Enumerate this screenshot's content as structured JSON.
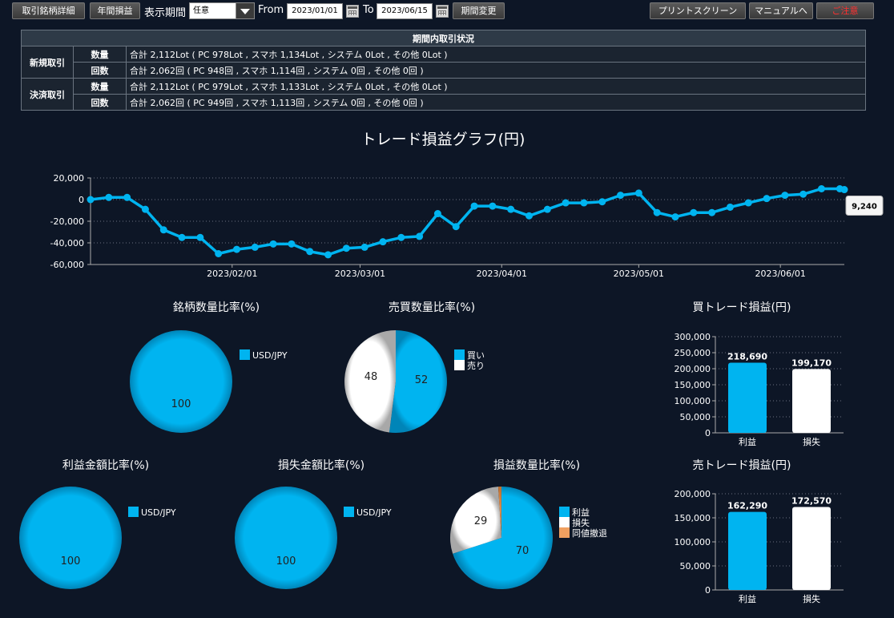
{
  "toolbar": {
    "detail_button": "取引銘柄詳細",
    "annual_button": "年間損益",
    "period_label": "表示期間",
    "period_select": "任意",
    "from_label": "From",
    "from_date": "2023/01/01",
    "to_label": "To",
    "to_date": "2023/06/15",
    "change_button": "期間変更",
    "print_button": "プリントスクリーン",
    "manual_button": "マニュアルへ",
    "caution_button": "ご注意"
  },
  "colors": {
    "accent": "#00b4f0",
    "white": "#ffffff",
    "draw": "#f0a060",
    "background": "#0d1626",
    "caution": "#ff3030"
  },
  "summary": {
    "title": "期間内取引状況",
    "rows": [
      {
        "group": "新規取引",
        "type": "数量",
        "value": "合計 2,112Lot ( PC 978Lot , スマホ 1,134Lot , システム 0Lot , その他 0Lot )"
      },
      {
        "group": "",
        "type": "回数",
        "value": "合計 2,062回 ( PC 948回 , スマホ 1,114回 , システム 0回 , その他 0回 )"
      },
      {
        "group": "決済取引",
        "type": "数量",
        "value": "合計 2,112Lot ( PC 979Lot , スマホ 1,133Lot , システム 0Lot , その他 0Lot )"
      },
      {
        "group": "",
        "type": "回数",
        "value": "合計 2,062回 ( PC 949回 , スマホ 1,113回 , システム 0回 , その他 0回 )"
      }
    ]
  },
  "chart_data": [
    {
      "id": "trade_pl",
      "type": "line",
      "title": "トレード損益グラフ(円)",
      "ylim": [
        -60000,
        20000
      ],
      "yticks": [
        20000,
        0,
        -20000,
        -40000,
        -60000
      ],
      "ytick_labels": [
        "20,000",
        "0",
        "-20,000",
        "-40,000",
        "-60,000"
      ],
      "xlim": [
        "2023-01-01",
        "2023-06-15"
      ],
      "xticks": [
        "2023-02-01",
        "2023-03-01",
        "2023-04-01",
        "2023-05-01",
        "2023-06-01"
      ],
      "xtick_labels": [
        "2023/02/01",
        "2023/03/01",
        "2023/04/01",
        "2023/05/01",
        "2023/06/01"
      ],
      "grid": true,
      "tooltip": "9,240",
      "points": [
        [
          "2023-01-01",
          0
        ],
        [
          "2023-01-05",
          2000
        ],
        [
          "2023-01-09",
          2000
        ],
        [
          "2023-01-13",
          -9000
        ],
        [
          "2023-01-17",
          -28000
        ],
        [
          "2023-01-21",
          -35000
        ],
        [
          "2023-01-25",
          -35000
        ],
        [
          "2023-01-29",
          -50000
        ],
        [
          "2023-02-02",
          -46000
        ],
        [
          "2023-02-06",
          -44000
        ],
        [
          "2023-02-10",
          -41000
        ],
        [
          "2023-02-14",
          -41000
        ],
        [
          "2023-02-18",
          -48000
        ],
        [
          "2023-02-22",
          -51000
        ],
        [
          "2023-02-26",
          -45000
        ],
        [
          "2023-03-02",
          -44000
        ],
        [
          "2023-03-06",
          -39000
        ],
        [
          "2023-03-10",
          -35000
        ],
        [
          "2023-03-14",
          -34000
        ],
        [
          "2023-03-18",
          -13000
        ],
        [
          "2023-03-22",
          -25000
        ],
        [
          "2023-03-26",
          -6000
        ],
        [
          "2023-03-30",
          -6000
        ],
        [
          "2023-04-03",
          -9000
        ],
        [
          "2023-04-07",
          -15000
        ],
        [
          "2023-04-11",
          -9000
        ],
        [
          "2023-04-15",
          -3000
        ],
        [
          "2023-04-19",
          -3000
        ],
        [
          "2023-04-23",
          -2000
        ],
        [
          "2023-04-27",
          4000
        ],
        [
          "2023-05-01",
          6000
        ],
        [
          "2023-05-05",
          -12000
        ],
        [
          "2023-05-09",
          -16000
        ],
        [
          "2023-05-13",
          -12000
        ],
        [
          "2023-05-17",
          -12000
        ],
        [
          "2023-05-21",
          -7000
        ],
        [
          "2023-05-25",
          -3000
        ],
        [
          "2023-05-29",
          1000
        ],
        [
          "2023-06-02",
          4000
        ],
        [
          "2023-06-06",
          5000
        ],
        [
          "2023-06-10",
          10000
        ],
        [
          "2023-06-14",
          10000
        ],
        [
          "2023-06-15",
          9240
        ]
      ]
    },
    {
      "id": "symbol_qty",
      "type": "pie",
      "title": "銘柄数量比率(%)",
      "slices": [
        {
          "label": "USD/JPY",
          "value": 100,
          "color": "#00b4f0"
        }
      ]
    },
    {
      "id": "buysell_qty",
      "type": "pie",
      "title": "売買数量比率(%)",
      "slices": [
        {
          "label": "買い",
          "value": 52,
          "color": "#00b4f0"
        },
        {
          "label": "売り",
          "value": 48,
          "color": "#ffffff"
        }
      ]
    },
    {
      "id": "buy_pl",
      "type": "bar",
      "title": "買トレード損益(円)",
      "categories": [
        "利益",
        "損失"
      ],
      "values": [
        218690,
        199170
      ],
      "value_labels": [
        "218,690",
        "199,170"
      ],
      "colors": [
        "#00b4f0",
        "#ffffff"
      ],
      "ylim": [
        0,
        300000
      ],
      "yticks": [
        0,
        50000,
        100000,
        150000,
        200000,
        250000,
        300000
      ],
      "ytick_labels": [
        "0",
        "50,000",
        "100,000",
        "150,000",
        "200,000",
        "250,000",
        "300,000"
      ]
    },
    {
      "id": "profit_amt",
      "type": "pie",
      "title": "利益金額比率(%)",
      "slices": [
        {
          "label": "USD/JPY",
          "value": 100,
          "color": "#00b4f0"
        }
      ]
    },
    {
      "id": "loss_amt",
      "type": "pie",
      "title": "損失金額比率(%)",
      "slices": [
        {
          "label": "USD/JPY",
          "value": 100,
          "color": "#00b4f0"
        }
      ]
    },
    {
      "id": "pl_qty",
      "type": "pie",
      "title": "損益数量比率(%)",
      "slices": [
        {
          "label": "利益",
          "value": 70,
          "color": "#00b4f0"
        },
        {
          "label": "損失",
          "value": 29,
          "color": "#ffffff"
        },
        {
          "label": "同値撤退",
          "value": 1,
          "color": "#f0a060",
          "hide_value": true
        }
      ]
    },
    {
      "id": "sell_pl",
      "type": "bar",
      "title": "売トレード損益(円)",
      "categories": [
        "利益",
        "損失"
      ],
      "values": [
        162290,
        172570
      ],
      "value_labels": [
        "162,290",
        "172,570"
      ],
      "colors": [
        "#00b4f0",
        "#ffffff"
      ],
      "ylim": [
        0,
        200000
      ],
      "yticks": [
        0,
        50000,
        100000,
        150000,
        200000
      ],
      "ytick_labels": [
        "0",
        "50,000",
        "100,000",
        "150,000",
        "200,000"
      ]
    }
  ]
}
